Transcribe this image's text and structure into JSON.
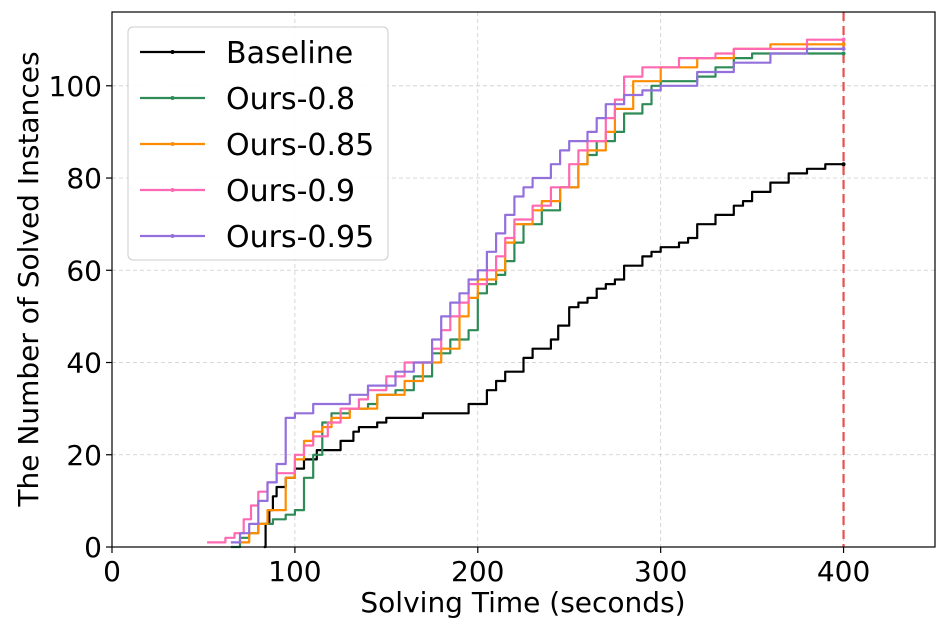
{
  "chart_data": {
    "type": "line",
    "title": "",
    "xlabel": "Solving Time (seconds)",
    "ylabel": "The Number of Solved Instances",
    "xlim": [
      0,
      450
    ],
    "ylim": [
      0,
      116
    ],
    "xticks": [
      0,
      100,
      200,
      300,
      400
    ],
    "yticks": [
      0,
      20,
      40,
      60,
      80,
      100
    ],
    "grid": true,
    "legend_position": "top-left",
    "time_limit": 400,
    "series": [
      {
        "name": "Baseline",
        "color": "#000000",
        "points": [
          [
            83,
            0
          ],
          [
            84,
            5
          ],
          [
            86,
            8
          ],
          [
            88,
            11
          ],
          [
            90,
            13
          ],
          [
            95,
            15
          ],
          [
            100,
            17
          ],
          [
            105,
            19
          ],
          [
            112,
            21
          ],
          [
            125,
            23
          ],
          [
            132,
            25
          ],
          [
            135,
            26
          ],
          [
            145,
            27
          ],
          [
            150,
            28
          ],
          [
            170,
            29
          ],
          [
            195,
            31
          ],
          [
            205,
            34
          ],
          [
            210,
            36
          ],
          [
            215,
            38
          ],
          [
            225,
            41
          ],
          [
            230,
            43
          ],
          [
            240,
            45
          ],
          [
            244,
            48
          ],
          [
            250,
            52
          ],
          [
            255,
            53
          ],
          [
            260,
            54
          ],
          [
            265,
            56
          ],
          [
            270,
            57
          ],
          [
            275,
            58
          ],
          [
            280,
            61
          ],
          [
            290,
            63
          ],
          [
            295,
            64
          ],
          [
            300,
            65
          ],
          [
            310,
            66
          ],
          [
            315,
            67
          ],
          [
            320,
            70
          ],
          [
            330,
            72
          ],
          [
            340,
            74
          ],
          [
            345,
            75
          ],
          [
            350,
            77
          ],
          [
            360,
            79
          ],
          [
            370,
            81
          ],
          [
            380,
            82
          ],
          [
            390,
            83
          ],
          [
            400,
            83
          ]
        ]
      },
      {
        "name": "Ours-0.8",
        "color": "#2e8b57",
        "points": [
          [
            65,
            0
          ],
          [
            70,
            2
          ],
          [
            75,
            3
          ],
          [
            80,
            5
          ],
          [
            88,
            6
          ],
          [
            95,
            7
          ],
          [
            100,
            8
          ],
          [
            105,
            15
          ],
          [
            110,
            20
          ],
          [
            115,
            27
          ],
          [
            120,
            29
          ],
          [
            130,
            30
          ],
          [
            140,
            31
          ],
          [
            145,
            33
          ],
          [
            155,
            34
          ],
          [
            165,
            37
          ],
          [
            175,
            42
          ],
          [
            185,
            45
          ],
          [
            195,
            47
          ],
          [
            200,
            55
          ],
          [
            205,
            57
          ],
          [
            210,
            59
          ],
          [
            215,
            62
          ],
          [
            220,
            66
          ],
          [
            225,
            70
          ],
          [
            235,
            73
          ],
          [
            245,
            78
          ],
          [
            255,
            83
          ],
          [
            260,
            85
          ],
          [
            265,
            88
          ],
          [
            275,
            90
          ],
          [
            280,
            94
          ],
          [
            290,
            96
          ],
          [
            295,
            100
          ],
          [
            300,
            101
          ],
          [
            320,
            102
          ],
          [
            330,
            104
          ],
          [
            340,
            106
          ],
          [
            350,
            107
          ],
          [
            400,
            107
          ]
        ]
      },
      {
        "name": "Ours-0.85",
        "color": "#ff8c00",
        "points": [
          [
            70,
            1
          ],
          [
            75,
            3
          ],
          [
            80,
            5
          ],
          [
            85,
            8
          ],
          [
            95,
            15
          ],
          [
            100,
            19
          ],
          [
            105,
            23
          ],
          [
            110,
            25
          ],
          [
            115,
            26
          ],
          [
            120,
            28
          ],
          [
            130,
            30
          ],
          [
            145,
            33
          ],
          [
            160,
            36
          ],
          [
            170,
            40
          ],
          [
            180,
            43
          ],
          [
            190,
            50
          ],
          [
            195,
            54
          ],
          [
            200,
            58
          ],
          [
            210,
            60
          ],
          [
            215,
            66
          ],
          [
            220,
            70
          ],
          [
            230,
            73
          ],
          [
            235,
            75
          ],
          [
            245,
            78
          ],
          [
            255,
            83
          ],
          [
            260,
            86
          ],
          [
            270,
            90
          ],
          [
            275,
            95
          ],
          [
            285,
            101
          ],
          [
            300,
            104
          ],
          [
            320,
            106
          ],
          [
            340,
            108
          ],
          [
            360,
            109
          ],
          [
            400,
            109
          ]
        ]
      },
      {
        "name": "Ours-0.9",
        "color": "#ff69b4",
        "points": [
          [
            52,
            1
          ],
          [
            62,
            2
          ],
          [
            67,
            3
          ],
          [
            72,
            6
          ],
          [
            76,
            9
          ],
          [
            80,
            12
          ],
          [
            85,
            14
          ],
          [
            90,
            16
          ],
          [
            100,
            20
          ],
          [
            105,
            22
          ],
          [
            110,
            24
          ],
          [
            118,
            27
          ],
          [
            125,
            30
          ],
          [
            135,
            32
          ],
          [
            140,
            34
          ],
          [
            150,
            37
          ],
          [
            160,
            40
          ],
          [
            175,
            43
          ],
          [
            180,
            47
          ],
          [
            185,
            50
          ],
          [
            190,
            53
          ],
          [
            195,
            57
          ],
          [
            205,
            60
          ],
          [
            210,
            63
          ],
          [
            215,
            67
          ],
          [
            220,
            71
          ],
          [
            230,
            74
          ],
          [
            240,
            78
          ],
          [
            250,
            83
          ],
          [
            255,
            86
          ],
          [
            260,
            88
          ],
          [
            270,
            93
          ],
          [
            275,
            97
          ],
          [
            280,
            102
          ],
          [
            290,
            104
          ],
          [
            310,
            106
          ],
          [
            330,
            107
          ],
          [
            340,
            108
          ],
          [
            380,
            110
          ],
          [
            400,
            110
          ]
        ]
      },
      {
        "name": "Ours-0.95",
        "color": "#9370db",
        "points": [
          [
            65,
            1
          ],
          [
            70,
            3
          ],
          [
            75,
            5
          ],
          [
            80,
            10
          ],
          [
            85,
            14
          ],
          [
            90,
            18
          ],
          [
            95,
            28
          ],
          [
            100,
            29
          ],
          [
            110,
            31
          ],
          [
            130,
            33
          ],
          [
            140,
            35
          ],
          [
            155,
            38
          ],
          [
            165,
            40
          ],
          [
            175,
            45
          ],
          [
            180,
            50
          ],
          [
            185,
            53
          ],
          [
            190,
            55
          ],
          [
            195,
            58
          ],
          [
            200,
            60
          ],
          [
            205,
            64
          ],
          [
            210,
            68
          ],
          [
            215,
            72
          ],
          [
            220,
            76
          ],
          [
            225,
            78
          ],
          [
            230,
            80
          ],
          [
            240,
            83
          ],
          [
            245,
            86
          ],
          [
            250,
            88
          ],
          [
            260,
            90
          ],
          [
            265,
            93
          ],
          [
            270,
            96
          ],
          [
            280,
            98
          ],
          [
            290,
            99
          ],
          [
            300,
            100
          ],
          [
            320,
            103
          ],
          [
            340,
            105
          ],
          [
            360,
            107
          ],
          [
            380,
            108
          ],
          [
            400,
            108
          ]
        ]
      }
    ]
  }
}
